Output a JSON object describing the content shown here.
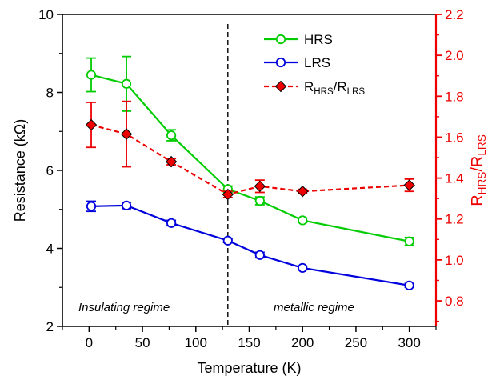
{
  "chart_data": {
    "type": "line",
    "xlabel": "Temperature (K)",
    "ylabel_left": "Resistance (kΩ)",
    "ylabel_right": {
      "base": "R",
      "sub1": "HRS",
      "slash": "/R",
      "sub2": "LRS"
    },
    "xlim": [
      -25,
      325
    ],
    "xticks": [
      0,
      50,
      100,
      150,
      200,
      250,
      300
    ],
    "ylim_left": [
      2,
      10
    ],
    "yticks_left": [
      2,
      4,
      6,
      8,
      10
    ],
    "ylim_right": [
      0.675,
      2.2
    ],
    "yticks_right": [
      0.8,
      1.0,
      1.2,
      1.4,
      1.6,
      1.8,
      2.0,
      2.2
    ],
    "right_tick_labels": [
      "0.8",
      "1.0",
      "1.2",
      "1.4",
      "1.6",
      "1.8",
      "2.0",
      "2.2"
    ],
    "divider_x": 130,
    "annotations": {
      "left": "Insulating regime",
      "right": "metallic regime"
    },
    "series": [
      {
        "name": "HRS",
        "axis": "left",
        "color": "#00cc00",
        "marker": "circle-open",
        "line": "solid",
        "x": [
          2,
          35,
          77,
          130,
          160,
          200,
          300
        ],
        "y": [
          8.45,
          8.22,
          6.9,
          5.52,
          5.22,
          4.72,
          4.18
        ],
        "err": [
          0.43,
          0.7,
          0.14,
          0.08,
          0.1,
          0.06,
          0.1
        ]
      },
      {
        "name": "LRS",
        "axis": "left",
        "color": "#0000dd",
        "marker": "circle-open",
        "line": "solid",
        "x": [
          2,
          35,
          77,
          130,
          160,
          200,
          300
        ],
        "y": [
          5.08,
          5.1,
          4.65,
          4.2,
          3.83,
          3.5,
          3.05
        ],
        "err": [
          0.13,
          0.08,
          0.07,
          0.05,
          0.07,
          0.05,
          0.05
        ]
      },
      {
        "name": {
          "base": "R",
          "sub1": "HRS",
          "slash": "/R",
          "sub2": "LRS"
        },
        "axis": "right",
        "color": "#ee0000",
        "marker": "diamond-filled",
        "line": "dashed",
        "x": [
          2,
          35,
          77,
          130,
          160,
          200,
          300
        ],
        "y": [
          1.66,
          1.615,
          1.48,
          1.32,
          1.36,
          1.335,
          1.365
        ],
        "err": [
          0.11,
          0.16,
          0.015,
          0.015,
          0.03,
          0.01,
          0.03
        ]
      }
    ],
    "legend_position": "top-right",
    "colors": {
      "left_axis": "#000000",
      "right_axis": "#ee0000"
    }
  }
}
